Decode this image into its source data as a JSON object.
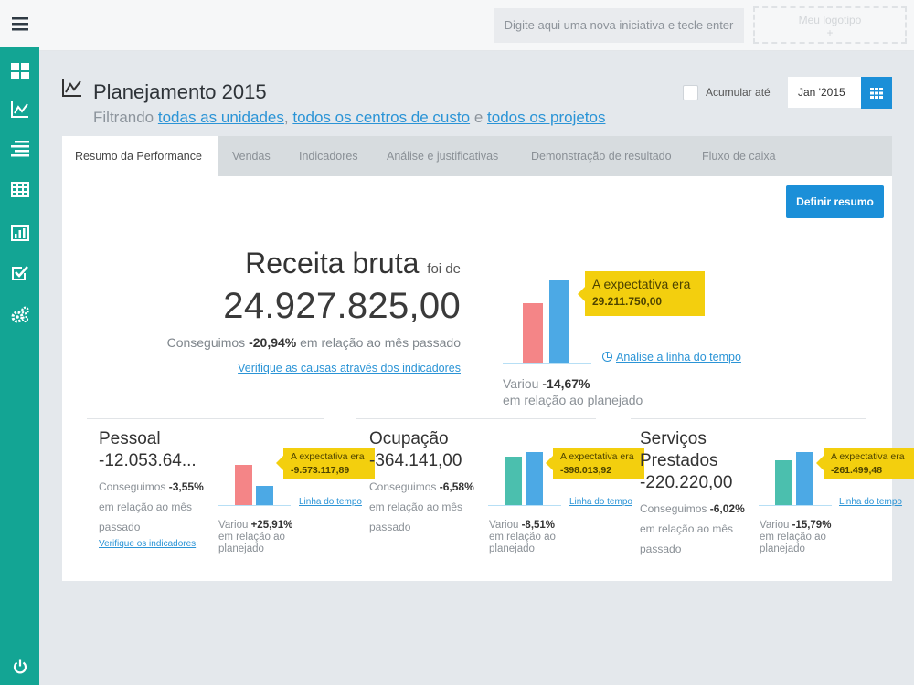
{
  "topbar": {
    "initiative_placeholder": "Digite aqui uma nova iniciativa e tecle enter",
    "logo_line1": "Meu logotipo",
    "logo_line2": "+"
  },
  "sidebar": {
    "items": [
      {
        "icon": "dashboard-icon"
      },
      {
        "icon": "line-chart-icon"
      },
      {
        "icon": "list-icon"
      },
      {
        "icon": "table-icon"
      },
      {
        "icon": "bar-chart-icon"
      },
      {
        "icon": "checklist-icon"
      },
      {
        "icon": "gears-icon"
      }
    ],
    "footer_icon": "power-icon"
  },
  "header": {
    "title": "Planejamento 2015",
    "filter_prefix": "Filtrando",
    "filter_units": "todas as unidades",
    "filter_sep1": ",",
    "filter_costcenters": "todos os centros de custo",
    "filter_sep2": "e",
    "filter_projects": "todos os projetos",
    "accumulate_label": "Acumular até",
    "date_value": "Jan '2015"
  },
  "tabs": [
    {
      "label": "Resumo da Performance",
      "active": true
    },
    {
      "label": "Vendas",
      "active": false
    },
    {
      "label": "Indicadores",
      "active": false
    },
    {
      "label": "Análise e justificativas",
      "active": false
    },
    {
      "label": "Demonstração de resultado",
      "active": false
    },
    {
      "label": "Fluxo de caixa",
      "active": false
    }
  ],
  "summary_button": "Definir resumo",
  "main_metric": {
    "title": "Receita bruta",
    "title_suffix": "foi de",
    "value": "24.927.825,00",
    "cmp_prefix": "Conseguimos",
    "cmp_value": "-20,94%",
    "cmp_suffix": "em relação ao mês passado",
    "link": "Verifique as causas através dos indicadores",
    "tip_label": "A expectativa era",
    "tip_value": "29.211.750,00",
    "timeline_link": "Analise a linha do tempo",
    "varied_prefix": "Variou",
    "varied_value": "-14,67%",
    "varied_suffix": "em relação ao planejado",
    "bars": {
      "actual": 78,
      "expected": 90
    }
  },
  "mini_metrics": [
    {
      "title_lines": [
        "Pessoal",
        "-12.053.64..."
      ],
      "cmp_value": "-3,55%",
      "cmp_lines": [
        "em relação ao mês",
        "passado"
      ],
      "link": "Verifique os indicadores",
      "tip_label": "A expectativa era",
      "tip_value": "-9.573.117,89",
      "timeline_link": "Linha do tempo",
      "varied_value": "+25,91%",
      "varied_lines": [
        "em relação ao",
        "planejado"
      ]
    },
    {
      "title_lines": [
        "Ocupação",
        "-364.141,00"
      ],
      "cmp_value": "-6,58%",
      "cmp_lines": [
        "em relação ao mês",
        "passado"
      ],
      "link": "",
      "tip_label": "A expectativa era",
      "tip_value": "-398.013,92",
      "timeline_link": "Linha do tempo",
      "varied_value": "-8,51%",
      "varied_lines": [
        "em relação ao",
        "planejado"
      ]
    },
    {
      "title_lines": [
        "Serviços",
        "Prestados",
        "-220.220,00"
      ],
      "cmp_value": "-6,02%",
      "cmp_lines": [
        "em relação ao mês",
        "passado"
      ],
      "link": "",
      "tip_label": "A expectativa era",
      "tip_value": "-261.499,48",
      "timeline_link": "Linha do tempo",
      "varied_value": "-15,79%",
      "varied_lines": [
        "em relação ao",
        "planejado"
      ]
    }
  ],
  "labels": {
    "cmp_prefix": "Conseguimos",
    "varied_prefix": "Variou"
  },
  "colors": {
    "sidebar": "#13a594",
    "accent_blue": "#1b8fd8",
    "bar_actual_main": "#f48587",
    "bar_actual_mini_1": "#f48587",
    "bar_actual_mini_2": "#4bbfae",
    "bar_actual_mini_3": "#4bbfae",
    "bar_expected": "#4ca9e5",
    "tooltip": "#f3cf0e"
  }
}
